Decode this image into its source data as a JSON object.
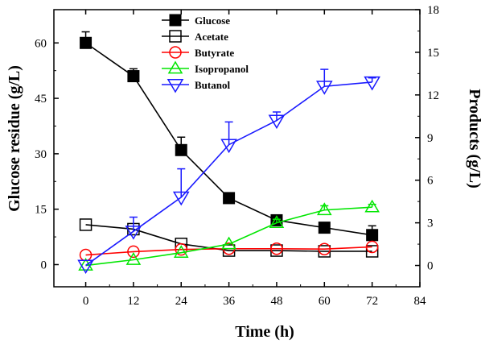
{
  "chart_data": {
    "type": "line",
    "x": [
      0,
      12,
      24,
      36,
      48,
      60,
      72
    ],
    "xlabel": "Time (h)",
    "xlim": [
      -8,
      84
    ],
    "xticks": [
      0,
      12,
      24,
      36,
      48,
      60,
      72,
      84
    ],
    "ylabel_left": "Glucose residue (g/L)",
    "ylim_left": [
      -6,
      69
    ],
    "yticks_left": [
      0,
      15,
      30,
      45,
      60
    ],
    "ylabel_right": "Products (g/L)",
    "ylim_right": [
      -1.5,
      18
    ],
    "yticks_right": [
      0,
      3,
      6,
      9,
      12,
      15,
      18
    ],
    "grid": false,
    "legend_position": "top-center",
    "series": [
      {
        "name": "Glucose",
        "axis": "left",
        "color": "#000000",
        "marker": "square-filled",
        "values": [
          60.0,
          51.0,
          31.0,
          18.0,
          12.0,
          10.0,
          8.0
        ],
        "errors": [
          3.0,
          2.0,
          3.5,
          1.0,
          0.8,
          0.8,
          2.5
        ]
      },
      {
        "name": "Acetate",
        "axis": "left",
        "color": "#000000",
        "marker": "square-open",
        "values": [
          10.8,
          9.6,
          5.6,
          3.8,
          3.8,
          3.6,
          3.6
        ],
        "errors": [
          0,
          0,
          0,
          0,
          0,
          0,
          0
        ]
      },
      {
        "name": "Butyrate",
        "axis": "left",
        "color": "#ff0000",
        "marker": "circle-open",
        "values": [
          2.6,
          3.5,
          4.1,
          4.3,
          4.3,
          4.2,
          4.8
        ],
        "errors": [
          0,
          0,
          0,
          0,
          0,
          0,
          0
        ]
      },
      {
        "name": "Isopropanol",
        "axis": "right",
        "color": "#00e600",
        "marker": "triangle-up-open",
        "values": [
          0.0,
          0.4,
          0.9,
          1.5,
          3.0,
          3.9,
          4.1
        ],
        "errors": [
          0,
          0,
          0,
          0,
          0.25,
          0.3,
          0.2
        ]
      },
      {
        "name": "Butanol",
        "axis": "right",
        "color": "#1a1aff",
        "marker": "triangle-down-open",
        "values": [
          0.0,
          2.4,
          4.8,
          8.5,
          10.2,
          12.6,
          12.9
        ],
        "errors": [
          0,
          1.0,
          2.0,
          1.6,
          0.6,
          1.2,
          0.3
        ]
      }
    ]
  }
}
